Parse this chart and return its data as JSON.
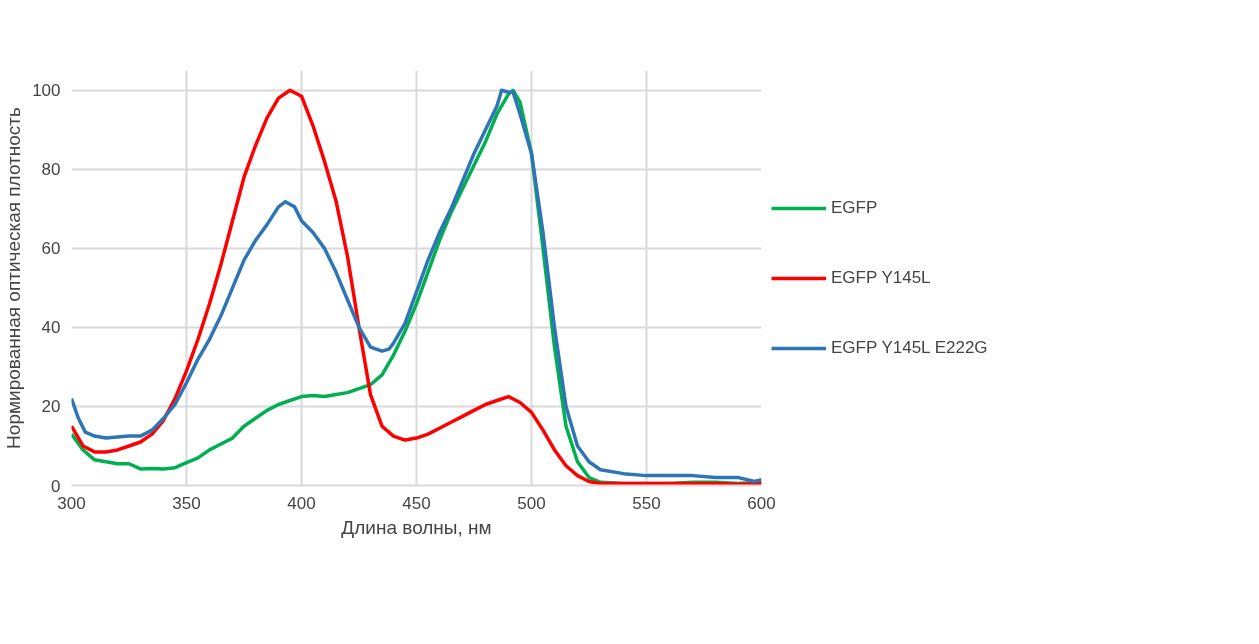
{
  "chart_data": {
    "type": "line",
    "xlabel": "Длина волны, нм",
    "ylabel": "Нормированная оптическая плотность",
    "xlim": [
      300,
      600
    ],
    "xticks": [
      300,
      350,
      400,
      450,
      500,
      550,
      600
    ],
    "ylim": [
      0,
      105
    ],
    "yticks": [
      0,
      20,
      40,
      60,
      80,
      100
    ],
    "grid": true,
    "legend": "right",
    "marker": "none",
    "line_style": "solid",
    "series": [
      {
        "name": "EGFP",
        "color": "#00b050",
        "x": [
          300,
          305,
          310,
          315,
          320,
          325,
          330,
          335,
          340,
          345,
          350,
          355,
          360,
          365,
          370,
          375,
          380,
          385,
          390,
          395,
          400,
          405,
          410,
          415,
          420,
          425,
          430,
          435,
          440,
          445,
          450,
          455,
          460,
          465,
          470,
          475,
          480,
          485,
          490,
          492,
          495,
          500,
          505,
          510,
          515,
          520,
          525,
          530,
          540,
          550,
          560,
          570,
          580,
          590,
          600
        ],
        "values": [
          13,
          9,
          6.5,
          6,
          5.5,
          5.5,
          4.2,
          4.3,
          4.2,
          4.5,
          5.8,
          7,
          9,
          10.5,
          12,
          15,
          17,
          19,
          20.5,
          21.5,
          22.5,
          22.8,
          22.5,
          23,
          23.5,
          24.5,
          25.5,
          28,
          33,
          39,
          46,
          54,
          62,
          69,
          75,
          81,
          87,
          94,
          99,
          100,
          97,
          84,
          60,
          35,
          15,
          6,
          2,
          0.8,
          0.5,
          0.5,
          0.5,
          0.8,
          0.8,
          0.5,
          0.8
        ]
      },
      {
        "name": "EGFP Y145L",
        "color": "#ff0000",
        "x": [
          300,
          305,
          310,
          315,
          320,
          325,
          330,
          335,
          340,
          345,
          350,
          355,
          360,
          365,
          370,
          375,
          380,
          385,
          390,
          395,
          400,
          405,
          410,
          415,
          420,
          425,
          430,
          435,
          440,
          445,
          450,
          455,
          460,
          465,
          470,
          475,
          480,
          485,
          490,
          495,
          500,
          505,
          510,
          515,
          520,
          525,
          530,
          540,
          550,
          560,
          570,
          580,
          590,
          600
        ],
        "values": [
          15,
          10,
          8.5,
          8.5,
          9,
          10,
          11,
          13,
          16.5,
          22,
          29,
          37,
          46,
          56,
          67,
          78,
          86,
          93,
          98,
          100,
          98.5,
          91,
          82,
          72,
          58,
          40,
          23,
          15,
          12.5,
          11.5,
          12,
          13,
          14.5,
          16,
          17.5,
          19,
          20.5,
          21.5,
          22.5,
          21,
          18.5,
          14,
          9,
          5,
          2.5,
          1,
          0.5,
          0.5,
          0.5,
          0.5,
          0.5,
          0.5,
          0.3,
          0.5
        ]
      },
      {
        "name": "EGFP Y145L E222G",
        "color": "#2e75b6",
        "x": [
          300,
          303,
          306,
          310,
          315,
          320,
          325,
          330,
          335,
          340,
          345,
          350,
          355,
          360,
          365,
          370,
          375,
          380,
          385,
          390,
          393,
          397,
          400,
          405,
          410,
          415,
          420,
          425,
          430,
          435,
          438,
          440,
          445,
          450,
          455,
          460,
          465,
          470,
          475,
          480,
          485,
          487,
          490,
          492,
          495,
          500,
          505,
          510,
          515,
          520,
          525,
          530,
          540,
          550,
          560,
          570,
          580,
          590,
          597,
          600
        ],
        "values": [
          22,
          17,
          13.5,
          12.5,
          12,
          12.3,
          12.5,
          12.5,
          14,
          17,
          20.5,
          26,
          32,
          37,
          43,
          50,
          57,
          62,
          66,
          70.5,
          71.8,
          70.5,
          67,
          64,
          60,
          54,
          47,
          40,
          35,
          34,
          34.5,
          36,
          41,
          49,
          57,
          64,
          70,
          77,
          84,
          90,
          96,
          100,
          99.5,
          99.5,
          94,
          84,
          64,
          40,
          20,
          10,
          6,
          4,
          3,
          2.5,
          2.5,
          2.5,
          2,
          2,
          1,
          1.5
        ]
      }
    ]
  }
}
